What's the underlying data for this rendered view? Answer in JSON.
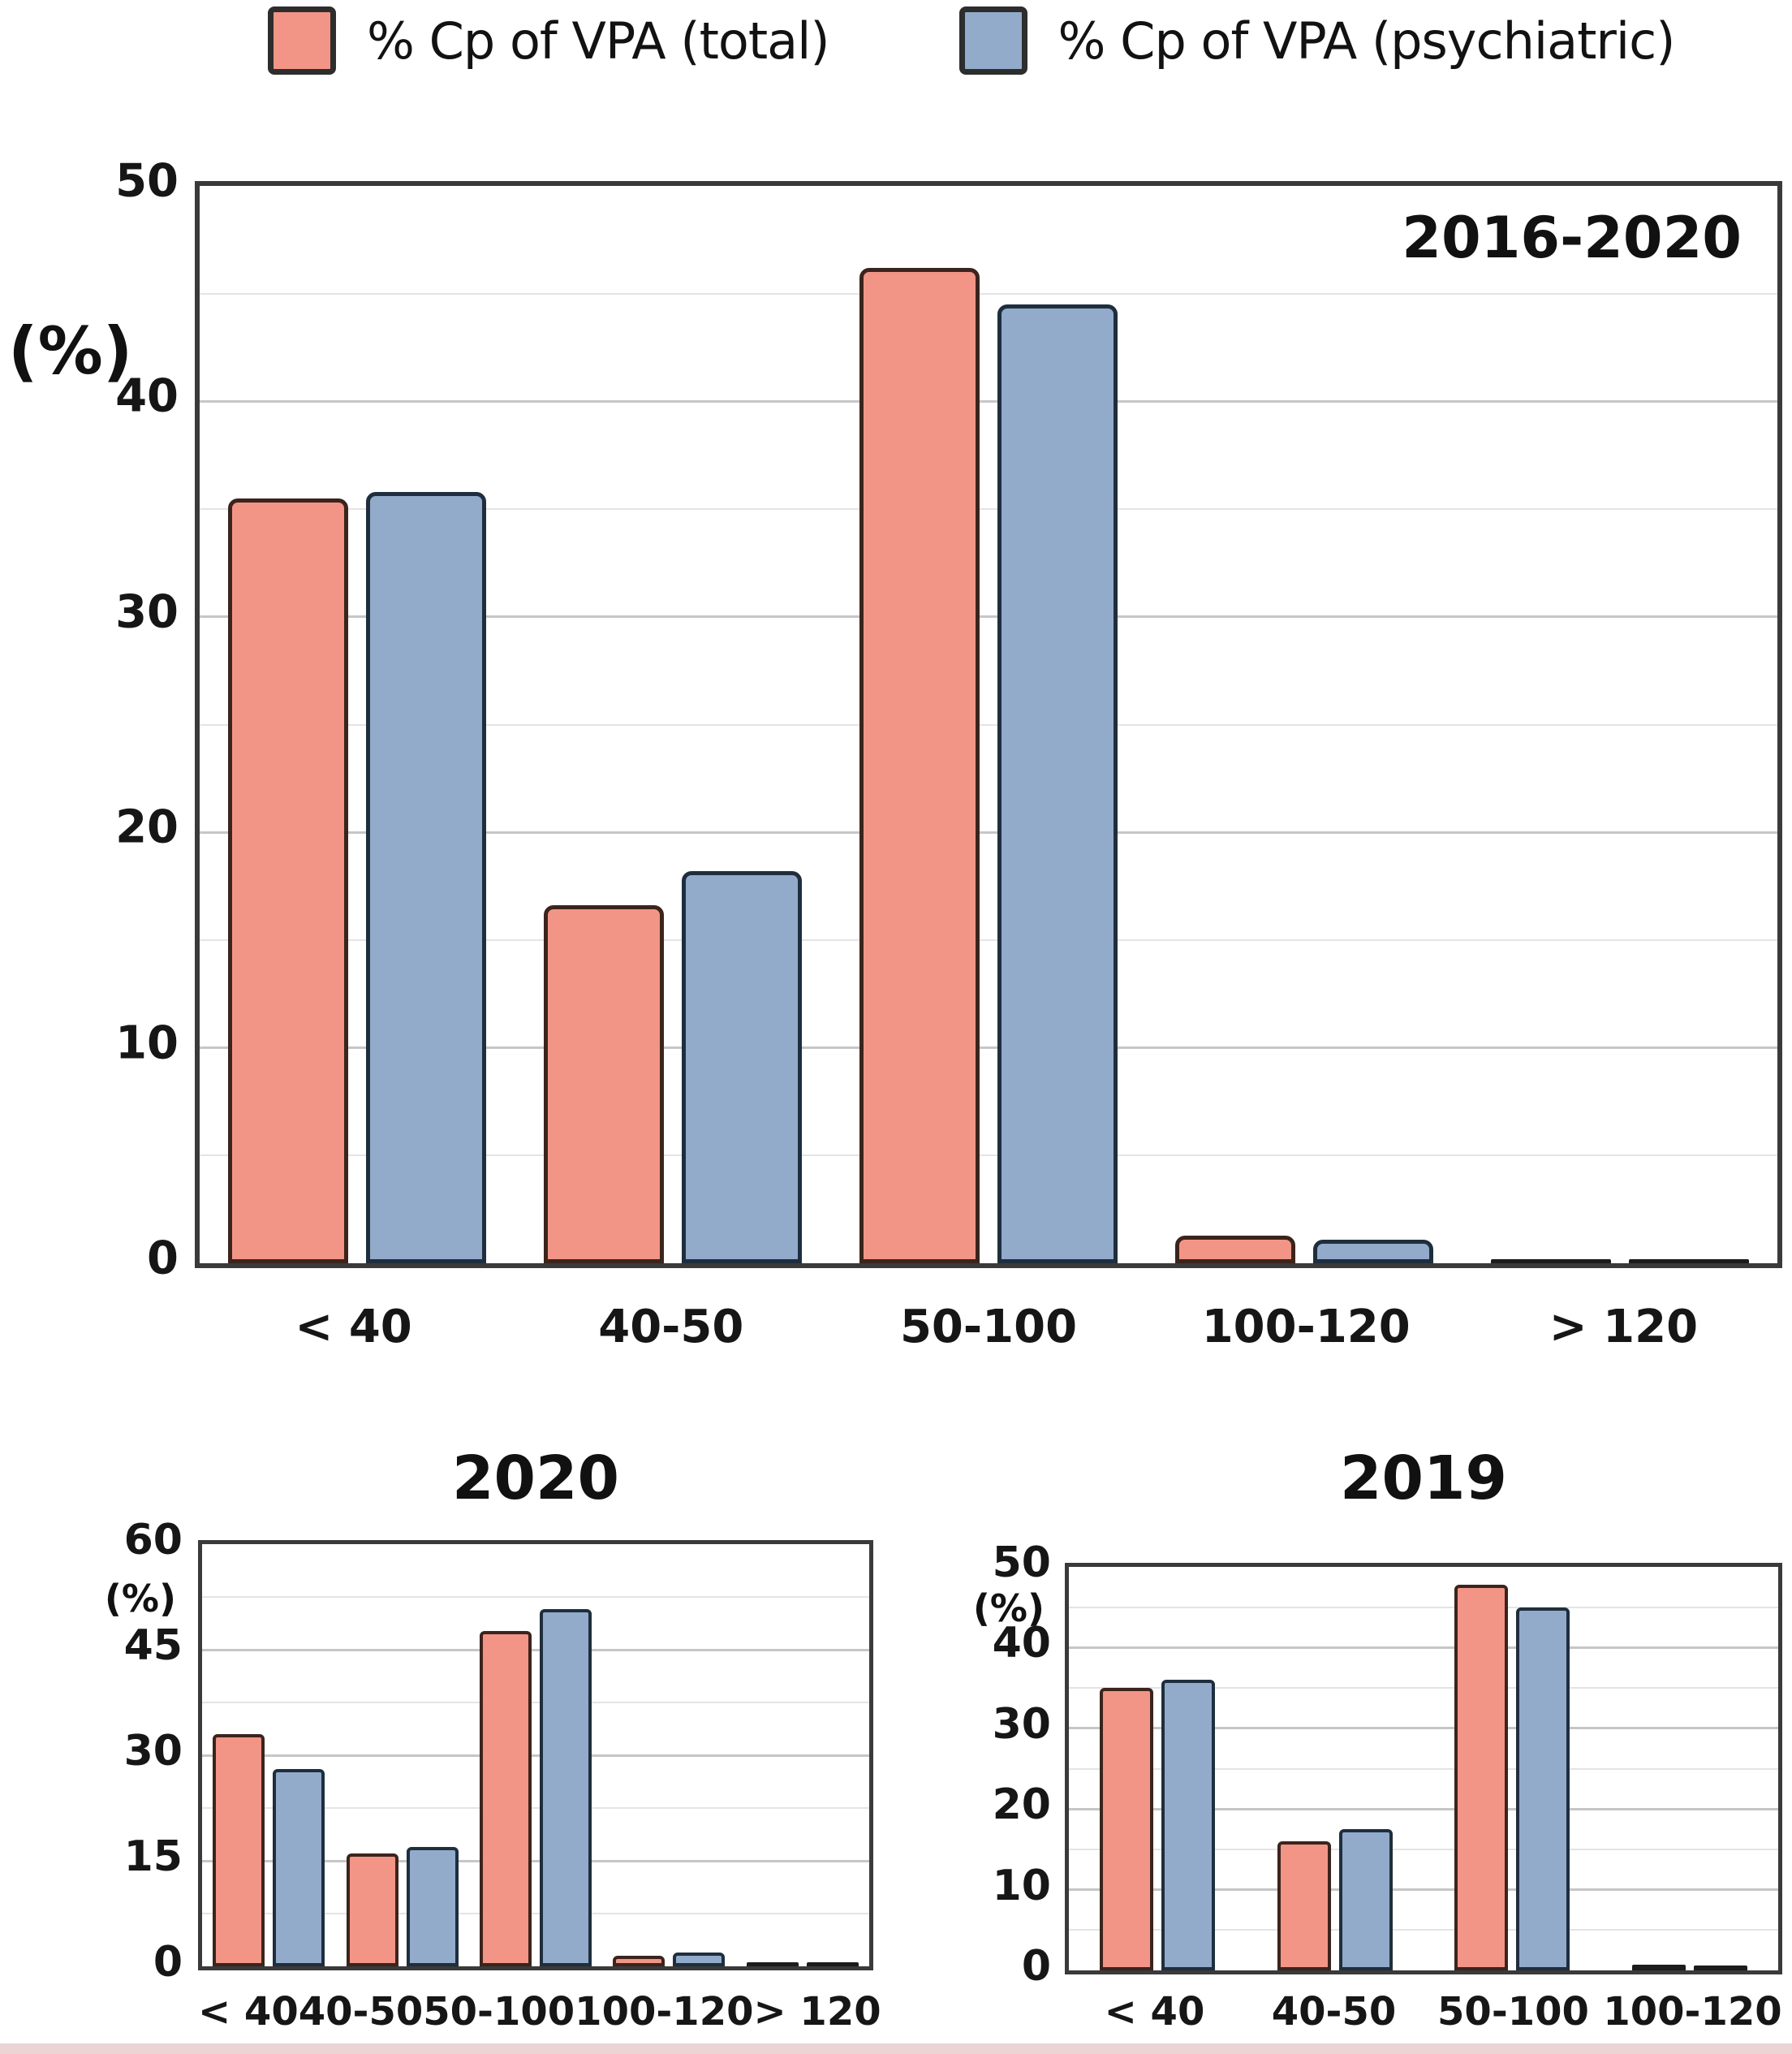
{
  "legend": {
    "items": [
      {
        "label": "% Cp of VPA (total)",
        "color": "#F29586"
      },
      {
        "label": "% Cp of VPA (psychiatric)",
        "color": "#92ABCB"
      }
    ]
  },
  "colors": {
    "total_fill": "#F29586",
    "total_edge": "#3B241D",
    "psych_fill": "#92ABCB",
    "psych_edge": "#1F2E3D",
    "tiny_bar": "#1c1c1c",
    "frame": "#3a3a3a",
    "grid_major": "#c6c6c6",
    "grid_minor": "#e4e4e4"
  },
  "chart_data": [
    {
      "type": "bar",
      "title": "2016-2020",
      "ylabel": "(%)",
      "categories": [
        "< 40",
        "40-50",
        "50-100",
        "100-120",
        "> 120"
      ],
      "series": [
        {
          "name": "% Cp of VPA (total)",
          "values": [
            35.5,
            16.6,
            46.2,
            1.3,
            0.2
          ]
        },
        {
          "name": "% Cp of VPA (psychiatric)",
          "values": [
            35.8,
            18.2,
            44.5,
            1.1,
            0.2
          ]
        }
      ],
      "ylim": [
        0,
        50
      ],
      "yticks": [
        0,
        10,
        20,
        30,
        40,
        50
      ],
      "minor_ticks": [
        5,
        15,
        25,
        35,
        45
      ],
      "grid": true,
      "legend_position": "top"
    },
    {
      "type": "bar",
      "title": "2020",
      "ylabel": "(%)",
      "categories": [
        "< 40",
        "40-50",
        "50-100",
        "100-120",
        "> 120"
      ],
      "series": [
        {
          "name": "% Cp of VPA (total)",
          "values": [
            33,
            16,
            47.7,
            1.5,
            0.3
          ]
        },
        {
          "name": "% Cp of VPA (psychiatric)",
          "values": [
            28,
            17,
            50.8,
            2,
            0.3
          ]
        }
      ],
      "ylim": [
        0,
        60
      ],
      "yticks": [
        0,
        15,
        30,
        45,
        60
      ],
      "minor_ticks": [
        7.5,
        22.5,
        37.5,
        52.5
      ],
      "grid": true,
      "legend_position": "none"
    },
    {
      "type": "bar",
      "title": "2019",
      "ylabel": "(%)",
      "categories": [
        "< 40",
        "40-50",
        "50-100",
        "100-120"
      ],
      "series": [
        {
          "name": "% Cp of VPA (total)",
          "values": [
            35,
            16,
            47.8,
            0.7
          ]
        },
        {
          "name": "% Cp of VPA (psychiatric)",
          "values": [
            36,
            17.5,
            45,
            0.6
          ]
        }
      ],
      "ylim": [
        0,
        50
      ],
      "yticks": [
        0,
        10,
        20,
        30,
        40,
        50
      ],
      "minor_ticks": [
        5,
        15,
        25,
        35,
        45
      ],
      "grid": true,
      "legend_position": "none"
    }
  ]
}
